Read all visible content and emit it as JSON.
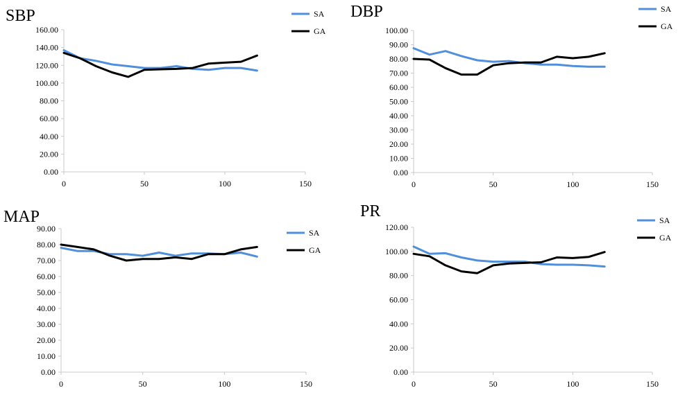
{
  "colors": {
    "SA": "#4f8fdc",
    "GA": "#000000",
    "axis": "#c8c8c8"
  },
  "chart_data": [
    {
      "type": "line",
      "title": "SBP",
      "xlim": [
        0,
        150
      ],
      "ylim": [
        0,
        160
      ],
      "xticks": [
        "0",
        "50",
        "100",
        "150"
      ],
      "yticks": [
        "0.00",
        "20.00",
        "40.00",
        "60.00",
        "80.00",
        "100.00",
        "120.00",
        "140.00",
        "160.00"
      ],
      "x": [
        0,
        10,
        20,
        30,
        40,
        50,
        60,
        70,
        80,
        90,
        100,
        110,
        120
      ],
      "series": [
        {
          "name": "SA",
          "values": [
            137,
            128,
            125,
            121,
            119,
            117,
            117,
            119,
            116,
            115,
            117,
            117,
            114
          ]
        },
        {
          "name": "GA",
          "values": [
            134,
            128,
            119,
            112,
            107,
            115,
            115.5,
            116,
            117,
            122,
            123,
            124,
            131
          ]
        }
      ],
      "legend": "top-right",
      "grid": false
    },
    {
      "type": "line",
      "title": "DBP",
      "xlim": [
        0,
        150
      ],
      "ylim": [
        0,
        100
      ],
      "xticks": [
        "0",
        "50",
        "100",
        "150"
      ],
      "yticks": [
        "0.00",
        "10.00",
        "20.00",
        "30.00",
        "40.00",
        "50.00",
        "60.00",
        "70.00",
        "80.00",
        "90.00",
        "100.00"
      ],
      "x": [
        0,
        10,
        20,
        30,
        40,
        50,
        60,
        70,
        80,
        90,
        100,
        110,
        120
      ],
      "series": [
        {
          "name": "SA",
          "values": [
            87.5,
            83,
            85.5,
            82,
            79,
            78,
            78.5,
            77,
            76,
            76,
            75,
            74.5,
            74.5
          ]
        },
        {
          "name": "GA",
          "values": [
            80,
            79.5,
            73.5,
            69,
            69,
            75.5,
            77,
            77.5,
            77.5,
            81.5,
            80.5,
            81.5,
            84
          ]
        }
      ],
      "legend": "top-right",
      "grid": false
    },
    {
      "type": "line",
      "title": "MAP",
      "xlim": [
        0,
        150
      ],
      "ylim": [
        0,
        90
      ],
      "xticks": [
        "0",
        "50",
        "100",
        "150"
      ],
      "yticks": [
        "0.00",
        "10.00",
        "20.00",
        "30.00",
        "40.00",
        "50.00",
        "60.00",
        "70.00",
        "80.00",
        "90.00"
      ],
      "x": [
        0,
        10,
        20,
        30,
        40,
        50,
        60,
        70,
        80,
        90,
        100,
        110,
        120
      ],
      "series": [
        {
          "name": "SA",
          "values": [
            78,
            76,
            76,
            74,
            74,
            73,
            75,
            73,
            74.5,
            74.5,
            74,
            75,
            72.5
          ]
        },
        {
          "name": "GA",
          "values": [
            80,
            78.5,
            77,
            73,
            70,
            71,
            71,
            72,
            71,
            74,
            74,
            77,
            78.5
          ]
        }
      ],
      "legend": "top-right",
      "grid": false
    },
    {
      "type": "line",
      "title": "PR",
      "xlim": [
        0,
        150
      ],
      "ylim": [
        0,
        120
      ],
      "xticks": [
        "0",
        "50",
        "100",
        "150"
      ],
      "yticks": [
        "0.00",
        "20.00",
        "40.00",
        "60.00",
        "80.00",
        "100.00",
        "120.00"
      ],
      "x": [
        0,
        10,
        20,
        30,
        40,
        50,
        60,
        70,
        80,
        90,
        100,
        110,
        120
      ],
      "series": [
        {
          "name": "SA",
          "values": [
            104,
            98,
            98.5,
            95,
            92.5,
            91.5,
            91.5,
            91.5,
            89.5,
            89,
            89,
            88.5,
            87.5
          ]
        },
        {
          "name": "GA",
          "values": [
            98,
            96,
            88.5,
            83.5,
            82,
            88.5,
            90,
            90.5,
            91,
            95,
            94.5,
            95.5,
            99.5
          ]
        }
      ],
      "legend": "top-right",
      "grid": false
    }
  ]
}
